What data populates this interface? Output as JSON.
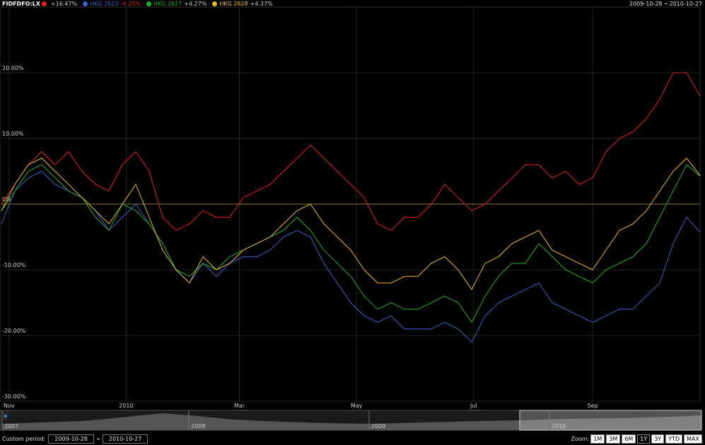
{
  "chart_data": {
    "type": "line",
    "xlim": [
      "2009-10-28",
      "2010-10-27"
    ],
    "xticks": [
      {
        "value": "2009-11-01",
        "label": "Nov"
      },
      {
        "value": "2010-01-01",
        "label": "2010"
      },
      {
        "value": "2010-03-01",
        "label": "Mar"
      },
      {
        "value": "2010-05-01",
        "label": "May"
      },
      {
        "value": "2010-07-01",
        "label": "Jul"
      },
      {
        "value": "2010-09-01",
        "label": "Sep"
      }
    ],
    "ylim": [
      -30,
      30
    ],
    "yticks": [
      {
        "value": -30,
        "label": "-30.00%"
      },
      {
        "value": -20,
        "label": "-20.00%"
      },
      {
        "value": -10,
        "label": "-10.00%"
      },
      {
        "value": 0,
        "label": "0%"
      },
      {
        "value": 10,
        "label": "10.00%"
      },
      {
        "value": 20,
        "label": "20.00%"
      }
    ],
    "grid": true,
    "zero_line": true,
    "series": [
      {
        "name": "FIDFDFO:LX",
        "color": "#e8201e",
        "change": {
          "value": 16.47,
          "label": "+16.47%"
        },
        "values": [
          0,
          3,
          6,
          8,
          6,
          8,
          5,
          3,
          2,
          6,
          8,
          5,
          -2,
          -4,
          -3,
          -1,
          -2,
          -2,
          1,
          2,
          3,
          5,
          7,
          9,
          7,
          5,
          3,
          1,
          -3,
          -4,
          -2,
          -2,
          0,
          3,
          1,
          -1,
          0,
          2,
          4,
          6,
          6,
          4,
          5,
          3,
          4,
          8,
          10,
          11,
          13,
          16,
          20,
          20,
          16.47
        ]
      },
      {
        "name": "HKG 2823",
        "color": "#3a62c8",
        "change": {
          "value": -4.25,
          "label": "-4.25%"
        },
        "values": [
          -3,
          2,
          4,
          5,
          3,
          2,
          1,
          -1,
          -4,
          -2,
          0,
          -3,
          -6,
          -10,
          -12,
          -9,
          -11,
          -9,
          -8,
          -8,
          -7,
          -5,
          -4,
          -5,
          -9,
          -12,
          -15,
          -17,
          -18,
          -17,
          -19,
          -19,
          -19,
          -18,
          -19,
          -21,
          -17,
          -15,
          -14,
          -13,
          -12,
          -15,
          -16,
          -17,
          -18,
          -17,
          -16,
          -16,
          -14,
          -12,
          -6,
          -2,
          -4.25
        ]
      },
      {
        "name": "HKG 2827",
        "color": "#22b022",
        "change": {
          "value": 4.27,
          "label": "+4.27%"
        },
        "values": [
          -1,
          2,
          5,
          6,
          4,
          2,
          1,
          -2,
          -4,
          0,
          -1,
          -3,
          -6,
          -10,
          -11,
          -9,
          -10,
          -8,
          -7,
          -6,
          -5,
          -4,
          -2,
          -4,
          -7,
          -9,
          -11,
          -14,
          -16,
          -15,
          -16,
          -16,
          -15,
          -14,
          -15,
          -18,
          -14,
          -11,
          -9,
          -9,
          -6,
          -8,
          -10,
          -11,
          -12,
          -10,
          -9,
          -8,
          -6,
          -2,
          2,
          6,
          4.27
        ]
      },
      {
        "name": "HKG 2828",
        "color": "#e8b830",
        "change": {
          "value": 4.37,
          "label": "+4.37%"
        },
        "values": [
          -1,
          3,
          6,
          7,
          5,
          3,
          1,
          -1,
          -3,
          0,
          3,
          -2,
          -7,
          -10,
          -12,
          -8,
          -10,
          -9,
          -7,
          -6,
          -5,
          -3,
          -1,
          0,
          -3,
          -5,
          -7,
          -10,
          -12,
          -12,
          -11,
          -11,
          -9,
          -8,
          -10,
          -13,
          -9,
          -8,
          -6,
          -5,
          -4,
          -7,
          -8,
          -9,
          -10,
          -7,
          -4,
          -3,
          -1,
          2,
          5,
          7,
          4.37
        ]
      }
    ]
  },
  "navigator": {
    "labels": [
      "2007",
      "2008",
      "2009",
      "2010"
    ]
  },
  "controls": {
    "custom_period_label": "Custom period:",
    "zoom_label": "Zoom:",
    "zoom_buttons": [
      "1M",
      "3M",
      "6M",
      "1Y",
      "3Y",
      "YTD",
      "MAX"
    ],
    "zoom_active_index": 3
  }
}
